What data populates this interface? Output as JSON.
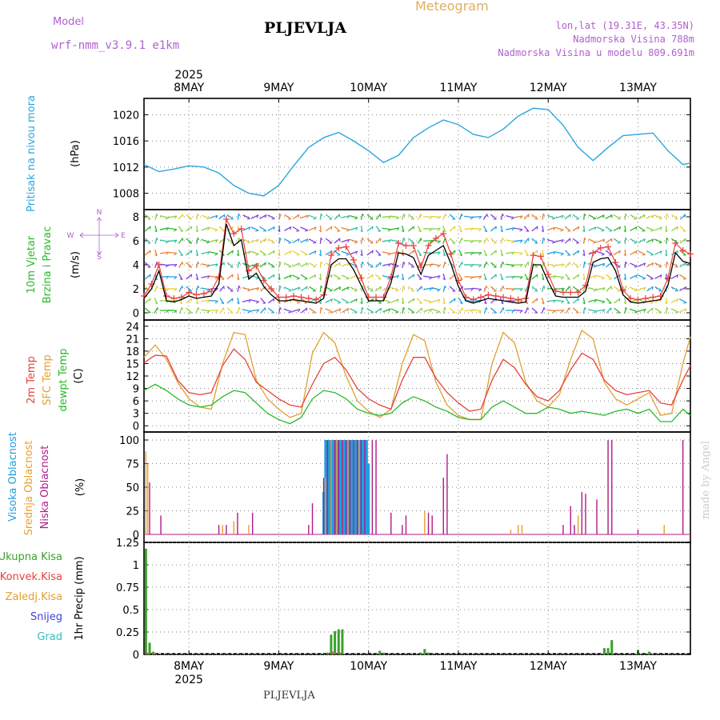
{
  "header": {
    "model_label": "Model",
    "model_name": "wrf-nmm_v3.9.1 e1km",
    "station": "PLJEVLJA",
    "product": "Meteogram",
    "coords": "lon,lat (19.31E, 43.35N)",
    "elev": "Nadmorska Visina 788m",
    "elev_model": "Nadmorska Visina u modelu 809.691m",
    "footer_station": "PLJEVLJA",
    "watermark": "made by Angel"
  },
  "colors": {
    "pressure": "#2aa6e0",
    "wind_speed": "#000000",
    "wind_gust": "#e8413c",
    "t2m": "#e8413c",
    "sfc": "#e0a030",
    "dewpt": "#2ab92a",
    "cloud_high": "#1e9fe0",
    "cloud_mid": "#e8a030",
    "cloud_low": "#b01a8a",
    "precip_total": "#3aa02a",
    "precip_conv": "#e8413c",
    "precip_snow": "#4040e0",
    "precip_hail": "#30c0c0",
    "header_purple": "#b060d0",
    "header_orange": "#e0b060"
  },
  "chart_data": [
    {
      "type": "line",
      "panel": "pressure",
      "ylabel_left": "Pritisak na nivou mora",
      "ylabel_units": "(hPa)",
      "ylim": [
        1005.5,
        1022.5
      ],
      "yticks": [
        "1008",
        "1012",
        "1016",
        "1020"
      ],
      "x_hours": [
        0,
        4,
        8,
        12,
        16,
        20,
        24,
        28,
        32,
        36,
        40,
        44,
        48,
        52,
        56,
        60,
        64,
        68,
        72,
        76,
        80,
        84,
        88,
        92,
        96,
        100,
        104,
        108,
        112,
        116,
        120,
        124,
        128,
        132,
        136,
        140,
        144,
        146
      ],
      "series": [
        {
          "values": [
            1012.4,
            1011.3,
            1011.7,
            1012.2,
            1012.0,
            1011.1,
            1009.2,
            1008.0,
            1007.6,
            1009.2,
            1012.2,
            1015.0,
            1016.5,
            1017.3,
            1016.0,
            1014.5,
            1012.7,
            1013.8,
            1016.5,
            1018.0,
            1019.2,
            1018.5,
            1017.0,
            1016.5,
            1017.8,
            1019.8,
            1021.0,
            1020.8,
            1018.4,
            1015.0,
            1013.0,
            1015.0,
            1016.8,
            1017.0,
            1017.2,
            1014.5,
            1012.4,
            1012.6
          ]
        }
      ]
    },
    {
      "type": "line",
      "panel": "wind",
      "ylabel_left1": "10m Vjetar",
      "ylabel_left2": "Brzina i Pravac",
      "ylabel_units": "(m/s)",
      "compass": [
        "N",
        "W",
        "E",
        "S"
      ],
      "ylim": [
        -0.6,
        8.6
      ],
      "yticks": [
        "0",
        "2",
        "4",
        "6",
        "8"
      ],
      "x_hours": [
        0,
        2,
        4,
        6,
        8,
        10,
        12,
        14,
        16,
        18,
        20,
        22,
        24,
        26,
        28,
        30,
        32,
        34,
        36,
        38,
        40,
        42,
        44,
        46,
        48,
        50,
        52,
        54,
        56,
        58,
        60,
        62,
        64,
        66,
        68,
        70,
        72,
        74,
        76,
        78,
        80,
        82,
        84,
        86,
        88,
        90,
        92,
        94,
        96,
        98,
        100,
        102,
        104,
        106,
        108,
        110,
        112,
        114,
        116,
        118,
        120,
        122,
        124,
        126,
        128,
        130,
        132,
        134,
        136,
        138,
        140,
        142,
        144,
        146
      ],
      "series": [
        {
          "name": "speed",
          "values": [
            1.2,
            2.0,
            3.5,
            1.0,
            0.9,
            1.1,
            1.4,
            1.2,
            1.3,
            1.4,
            2.4,
            7.4,
            5.6,
            6.1,
            2.8,
            3.3,
            2.2,
            1.5,
            1.0,
            1.0,
            1.1,
            1.0,
            0.9,
            0.8,
            1.2,
            4.0,
            4.5,
            4.5,
            3.6,
            2.3,
            1.0,
            1.0,
            1.0,
            2.5,
            5.0,
            4.9,
            4.6,
            3.2,
            4.8,
            5.2,
            5.6,
            4.1,
            2.2,
            1.0,
            0.8,
            1.0,
            1.2,
            1.1,
            1.0,
            0.9,
            0.8,
            0.9,
            4.0,
            4.0,
            2.6,
            1.4,
            1.3,
            1.3,
            1.3,
            1.8,
            4.2,
            4.5,
            4.6,
            3.5,
            1.5,
            0.9,
            0.8,
            0.9,
            1.0,
            1.1,
            2.3,
            5.0,
            4.3,
            4.1
          ]
        },
        {
          "name": "gust",
          "values": [
            1.4,
            2.4,
            4.0,
            1.4,
            1.2,
            1.3,
            1.7,
            1.5,
            1.6,
            1.8,
            3.0,
            7.8,
            6.6,
            7.0,
            3.5,
            3.9,
            2.7,
            2.0,
            1.3,
            1.3,
            1.4,
            1.3,
            1.2,
            1.1,
            1.5,
            4.8,
            5.4,
            5.5,
            4.4,
            2.9,
            1.3,
            1.3,
            1.3,
            3.0,
            5.8,
            5.6,
            5.6,
            3.8,
            5.6,
            6.2,
            6.6,
            4.9,
            2.7,
            1.3,
            1.1,
            1.3,
            1.5,
            1.4,
            1.3,
            1.2,
            1.1,
            1.2,
            4.8,
            4.7,
            3.2,
            1.8,
            1.7,
            1.7,
            1.7,
            2.3,
            5.0,
            5.4,
            5.5,
            4.2,
            1.9,
            1.2,
            1.1,
            1.2,
            1.3,
            1.4,
            2.9,
            5.8,
            5.2,
            4.9
          ]
        }
      ]
    },
    {
      "type": "line",
      "panel": "temperature",
      "ylabel_left1": "2m Temp",
      "ylabel_left2": "SFC Temp",
      "ylabel_left3": "dewpt Temp",
      "ylabel_units": "(C)",
      "ylim": [
        -1.5,
        25.5
      ],
      "yticks": [
        "0",
        "3",
        "6",
        "9",
        "12",
        "15",
        "18",
        "21",
        "24"
      ],
      "x_hours": [
        0,
        3,
        6,
        9,
        12,
        15,
        18,
        21,
        24,
        27,
        30,
        33,
        36,
        39,
        42,
        45,
        48,
        51,
        54,
        57,
        60,
        63,
        66,
        69,
        72,
        75,
        78,
        81,
        84,
        87,
        90,
        93,
        96,
        99,
        102,
        105,
        108,
        111,
        114,
        117,
        120,
        123,
        126,
        129,
        132,
        135,
        138,
        141,
        144,
        146
      ],
      "series": [
        {
          "name": "t2m",
          "values": [
            15.2,
            17.0,
            16.8,
            11.0,
            8.0,
            7.5,
            8.0,
            14.5,
            18.5,
            16.0,
            10.5,
            8.5,
            6.5,
            5.0,
            4.5,
            10.0,
            15.0,
            16.5,
            13.5,
            9.0,
            6.5,
            5.0,
            4.0,
            11.0,
            16.5,
            16.5,
            11.5,
            8.0,
            5.5,
            3.5,
            4.0,
            11.0,
            16.0,
            14.0,
            10.0,
            7.0,
            6.0,
            8.5,
            13.5,
            17.5,
            16.0,
            11.0,
            8.5,
            7.5,
            8.0,
            8.5,
            5.5,
            5.0,
            11.0,
            14.5
          ]
        },
        {
          "name": "sfc",
          "values": [
            16.5,
            19.5,
            16.0,
            10.5,
            6.5,
            4.5,
            4.0,
            15.0,
            22.5,
            22.0,
            11.0,
            6.5,
            4.0,
            2.0,
            3.0,
            17.5,
            22.5,
            20.0,
            12.0,
            6.0,
            3.5,
            2.0,
            4.0,
            15.0,
            22.0,
            20.5,
            10.5,
            5.0,
            2.5,
            1.5,
            1.5,
            15.0,
            22.5,
            20.0,
            10.5,
            6.0,
            4.5,
            7.5,
            16.0,
            23.0,
            21.0,
            10.5,
            6.5,
            5.0,
            6.5,
            8.0,
            2.5,
            3.0,
            15.0,
            21.5
          ]
        },
        {
          "name": "dewpt",
          "values": [
            8.5,
            10.0,
            8.5,
            6.5,
            5.0,
            4.5,
            5.0,
            7.0,
            8.5,
            8.0,
            5.5,
            3.0,
            1.5,
            0.5,
            2.0,
            6.5,
            8.5,
            8.0,
            6.5,
            4.0,
            3.0,
            2.5,
            3.0,
            5.5,
            7.0,
            6.0,
            4.5,
            3.5,
            2.0,
            1.5,
            1.5,
            4.5,
            6.0,
            4.5,
            3.0,
            3.0,
            4.5,
            4.0,
            3.0,
            3.5,
            3.0,
            2.5,
            3.5,
            4.0,
            3.0,
            4.0,
            1.0,
            1.0,
            4.0,
            2.5
          ]
        }
      ]
    },
    {
      "type": "bar",
      "panel": "clouds",
      "ylabel_left1": "Visoka Oblacnost",
      "ylabel_left2": "Srednja Oblacnost",
      "ylabel_left3": "Niska Oblacnost",
      "ylabel_units": "(%)",
      "ylim": [
        0,
        100
      ],
      "yticks": [
        "0",
        "25",
        "50",
        "75",
        "100"
      ],
      "series": [
        {
          "name": "high",
          "bars": [
            [
              48,
              45
            ],
            [
              48.5,
              100
            ],
            [
              49,
              100
            ],
            [
              49.5,
              100
            ],
            [
              50,
              100
            ],
            [
              50.5,
              100
            ],
            [
              51,
              100
            ],
            [
              51.5,
              100
            ],
            [
              52,
              100
            ],
            [
              52.5,
              100
            ],
            [
              53,
              100
            ],
            [
              53.5,
              100
            ],
            [
              54,
              100
            ],
            [
              54.5,
              100
            ],
            [
              55,
              100
            ],
            [
              55.5,
              100
            ],
            [
              56,
              100
            ],
            [
              56.5,
              100
            ],
            [
              57,
              100
            ],
            [
              57.5,
              100
            ],
            [
              58,
              100
            ],
            [
              58.5,
              100
            ],
            [
              59,
              100
            ],
            [
              59.5,
              100
            ],
            [
              60,
              75
            ]
          ]
        },
        {
          "name": "mid",
          "bars": [
            [
              0.5,
              88
            ],
            [
              1,
              75
            ],
            [
              21,
              10
            ],
            [
              24,
              14
            ],
            [
              28,
              10
            ],
            [
              48.5,
              60
            ],
            [
              50,
              100
            ],
            [
              51.5,
              100
            ],
            [
              53,
              100
            ],
            [
              54.5,
              100
            ],
            [
              56,
              100
            ],
            [
              57.5,
              100
            ],
            [
              75,
              25
            ],
            [
              76,
              10
            ],
            [
              98,
              5
            ],
            [
              100,
              10
            ],
            [
              101,
              10
            ],
            [
              116,
              20
            ],
            [
              139,
              10
            ]
          ]
        },
        {
          "name": "low",
          "bars": [
            [
              1.5,
              55
            ],
            [
              4.5,
              20
            ],
            [
              20,
              10
            ],
            [
              22,
              10
            ],
            [
              25,
              23
            ],
            [
              29,
              23
            ],
            [
              44,
              10
            ],
            [
              45,
              33
            ],
            [
              48,
              60
            ],
            [
              49,
              100
            ],
            [
              51,
              100
            ],
            [
              52,
              100
            ],
            [
              53,
              100
            ],
            [
              54,
              100
            ],
            [
              55,
              100
            ],
            [
              56,
              100
            ],
            [
              57,
              100
            ],
            [
              58,
              100
            ],
            [
              59,
              100
            ],
            [
              61,
              100
            ],
            [
              62,
              100
            ],
            [
              66,
              23
            ],
            [
              69,
              10
            ],
            [
              70,
              20
            ],
            [
              76,
              23
            ],
            [
              77,
              20
            ],
            [
              80,
              60
            ],
            [
              81,
              85
            ],
            [
              112,
              10
            ],
            [
              114,
              30
            ],
            [
              115,
              10
            ],
            [
              117,
              45
            ],
            [
              118,
              43
            ],
            [
              121,
              37
            ],
            [
              124,
              100
            ],
            [
              125,
              100
            ],
            [
              132,
              5
            ],
            [
              144,
              100
            ]
          ]
        }
      ]
    },
    {
      "type": "bar",
      "panel": "precip",
      "ylabel_units": "1hr Precip (mm)",
      "legend": [
        "Ukupna Kisa",
        "Konvek.Kisa",
        "Zaledj.Kisa",
        "Snijeg",
        "Grad"
      ],
      "ylim": [
        0,
        1.25
      ],
      "yticks": [
        "0",
        "0.25",
        "0.5",
        "0.75",
        "1",
        "1.25"
      ],
      "series": [
        {
          "name": "total",
          "bars": [
            [
              0.5,
              1.18
            ],
            [
              1.5,
              0.13
            ],
            [
              2.5,
              0.03
            ],
            [
              49,
              0.02
            ],
            [
              50,
              0.22
            ],
            [
              51,
              0.26
            ],
            [
              52,
              0.28
            ],
            [
              53,
              0.28
            ],
            [
              63,
              0.04
            ],
            [
              64,
              0.02
            ],
            [
              74,
              0.02
            ],
            [
              75,
              0.06
            ],
            [
              76,
              0.02
            ],
            [
              123,
              0.07
            ],
            [
              124,
              0.07
            ],
            [
              125,
              0.16
            ],
            [
              132,
              0.05
            ],
            [
              135,
              0.03
            ]
          ]
        },
        {
          "name": "conv",
          "bars": [
            [
              0.8,
              0.02
            ],
            [
              2.8,
              0.01
            ],
            [
              50.3,
              0.03
            ],
            [
              52.3,
              0.02
            ]
          ]
        }
      ]
    }
  ],
  "x_axis": {
    "start_hour": 0,
    "end_hour": 146,
    "day_labels": [
      {
        "hour": 12,
        "label": "8MAY"
      },
      {
        "hour": 36,
        "label": "9MAY"
      },
      {
        "hour": 60,
        "label": "10MAY"
      },
      {
        "hour": 84,
        "label": "11MAY"
      },
      {
        "hour": 108,
        "label": "12MAY"
      },
      {
        "hour": 132,
        "label": "13MAY"
      }
    ],
    "year_label": "2025"
  }
}
